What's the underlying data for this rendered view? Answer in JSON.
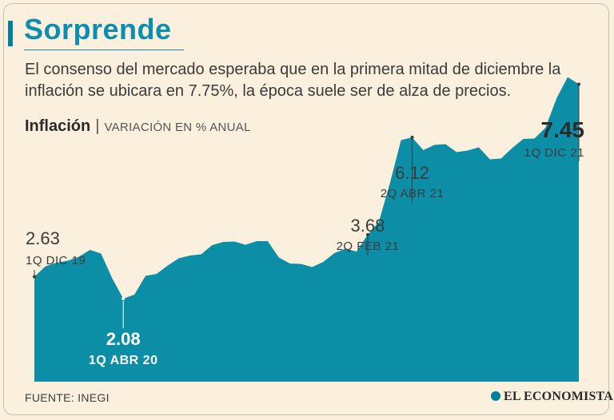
{
  "header": {
    "title": "Sorprende",
    "subtitle": "El consenso del mercado esperaba que en la primera mitad de diciembre la inflación se ubicara en 7.75%, la época suele ser de alza de precios."
  },
  "chart_header": {
    "name": "Inflación",
    "separator": "|",
    "unit": "VARIACIÓN EN % ANUAL"
  },
  "footer": {
    "source": "FUENTE: INEGI",
    "brand": "EL ECONOMISTA"
  },
  "colors": {
    "area": "#0c8fa6",
    "title": "#0c8fae",
    "text": "#3b3b3b",
    "background": "#fbf0de"
  },
  "chart_data": {
    "type": "area",
    "title": "Inflación",
    "ylabel": "VARIACIÓN EN % ANUAL",
    "ylim": [
      0,
      8
    ],
    "grid": false,
    "values": [
      2.63,
      2.89,
      2.98,
      3.03,
      3.13,
      3.3,
      3.21,
      2.59,
      2.08,
      2.18,
      2.65,
      2.7,
      2.91,
      3.09,
      3.16,
      3.19,
      3.42,
      3.5,
      3.51,
      3.43,
      3.52,
      3.52,
      3.11,
      2.96,
      2.95,
      2.87,
      3.0,
      3.22,
      3.33,
      3.26,
      3.68,
      4.0,
      4.97,
      6.05,
      6.12,
      5.8,
      5.93,
      5.95,
      5.75,
      5.79,
      5.87,
      5.57,
      5.59,
      5.85,
      6.08,
      6.09,
      6.36,
      7.1,
      7.63,
      7.45
    ],
    "annotations": [
      {
        "index": 0,
        "value": "2.63",
        "label": "1Q DIC 19",
        "position": "above"
      },
      {
        "index": 8,
        "value": "2.08",
        "label": "1Q ABR 20",
        "position": "below"
      },
      {
        "index": 30,
        "value": "3.68",
        "label": "2Q FEB 21",
        "position": "above"
      },
      {
        "index": 34,
        "value": "6.12",
        "label": "2Q ABR 21",
        "position": "above"
      },
      {
        "index": 49,
        "value": "7.45",
        "label": "1Q DIC 21",
        "position": "above"
      }
    ]
  }
}
